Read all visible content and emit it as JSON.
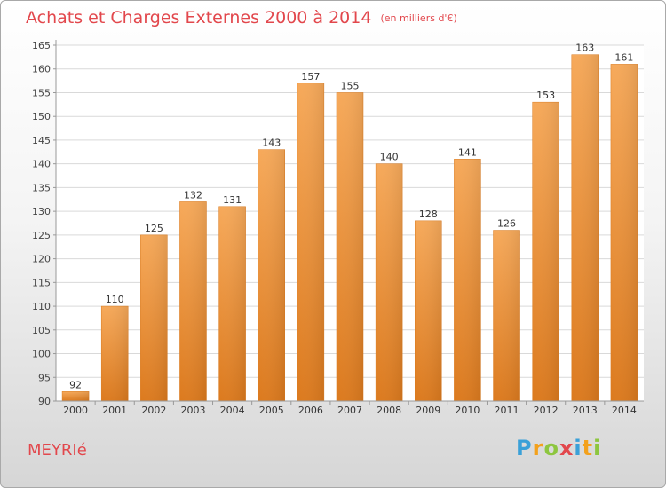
{
  "chart_data": {
    "type": "bar",
    "title": "Achats et Charges Externes 2000 à 2014",
    "subtitle": "(en milliers d'€)",
    "categories": [
      "2000",
      "2001",
      "2002",
      "2003",
      "2004",
      "2005",
      "2006",
      "2007",
      "2008",
      "2009",
      "2010",
      "2011",
      "2012",
      "2013",
      "2014"
    ],
    "values": [
      92,
      110,
      125,
      132,
      131,
      143,
      157,
      155,
      140,
      128,
      141,
      126,
      153,
      163,
      161
    ],
    "ylim": [
      90,
      165
    ],
    "yticks": [
      90,
      95,
      100,
      105,
      110,
      115,
      120,
      125,
      130,
      135,
      140,
      145,
      150,
      155,
      160,
      165
    ],
    "grid": true,
    "bar_color": "#f0943a",
    "grid_color": "#d9d9d9"
  },
  "place_label": "MEYRIé",
  "logo": {
    "letters": [
      "P",
      "r",
      "o",
      "x",
      "i",
      "t",
      "i"
    ],
    "colors": [
      "#3aa0d8",
      "#f3a11c",
      "#8dc63f",
      "#e2474c",
      "#3aa0d8",
      "#f3a11c",
      "#8dc63f"
    ]
  },
  "colors": {
    "title": "#e2474c",
    "place": "#e2474c"
  }
}
